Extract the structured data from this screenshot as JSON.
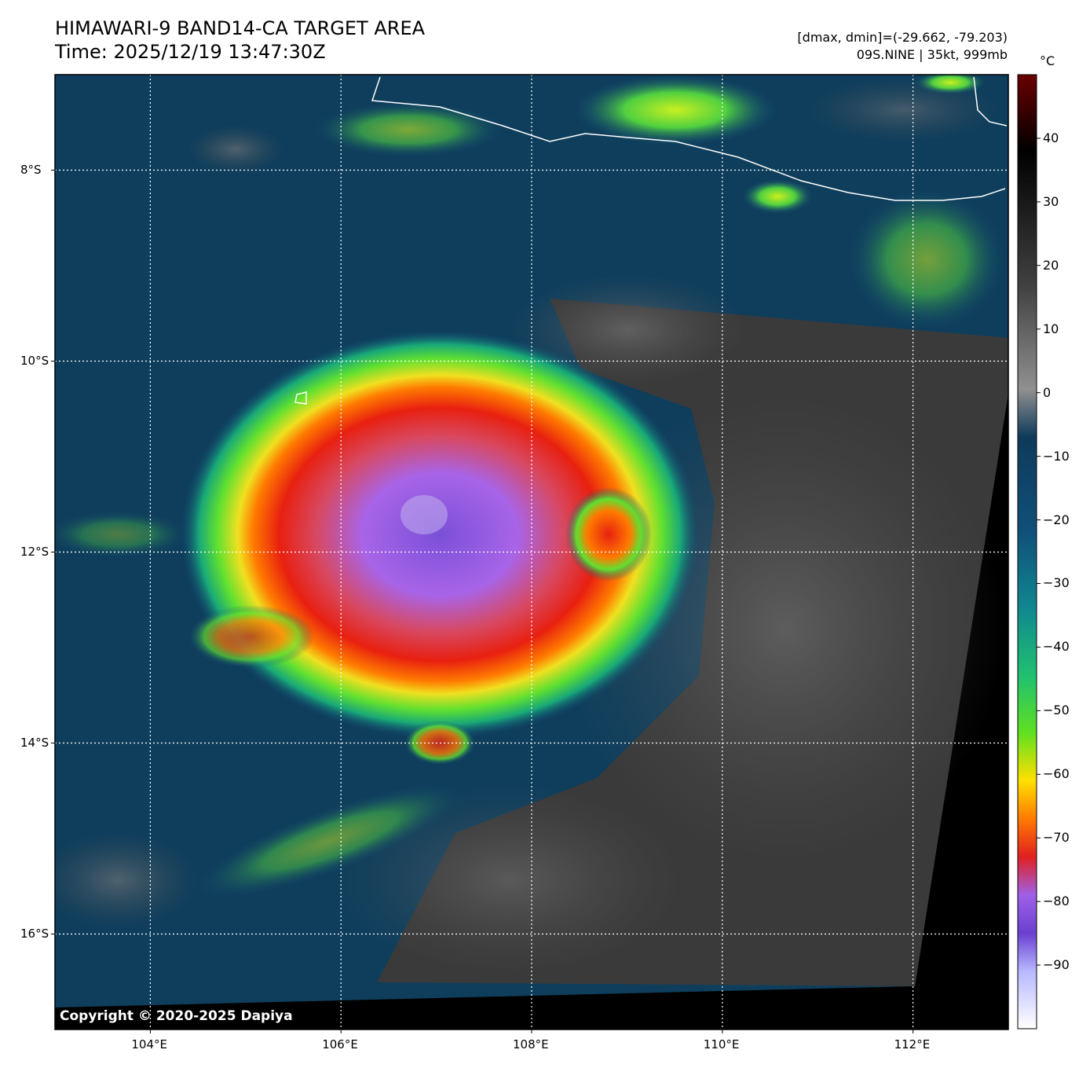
{
  "header": {
    "title_line1": "HIMAWARI-9 BAND14-CA TARGET AREA",
    "title_line2": "Time: 2025/12/19 13:47:30Z",
    "stats_line": "[dmax, dmin]=(-29.662, -79.203)",
    "storm_line": "09S.NINE | 35kt, 999mb"
  },
  "map": {
    "lon_range": [
      103,
      113
    ],
    "lat_range": [
      -17,
      -7
    ],
    "lon_ticks": [
      {
        "value": 104,
        "label": "104°E"
      },
      {
        "value": 106,
        "label": "106°E"
      },
      {
        "value": 108,
        "label": "108°E"
      },
      {
        "value": 110,
        "label": "110°E"
      },
      {
        "value": 112,
        "label": "112°E"
      }
    ],
    "lat_ticks": [
      {
        "value": -8,
        "label": "8°S"
      },
      {
        "value": -10,
        "label": "10°S"
      },
      {
        "value": -12,
        "label": "12°S"
      },
      {
        "value": -14,
        "label": "14°S"
      },
      {
        "value": -16,
        "label": "16°S"
      }
    ],
    "gridlines": true,
    "copyright": "Copyright © 2020-2025 Dapiya"
  },
  "colorbar": {
    "unit": "°C",
    "range": [
      -100,
      50
    ],
    "ticks": [
      {
        "value": 40,
        "label": "40"
      },
      {
        "value": 30,
        "label": "30"
      },
      {
        "value": 20,
        "label": "20"
      },
      {
        "value": 10,
        "label": "10"
      },
      {
        "value": 0,
        "label": "0"
      },
      {
        "value": -10,
        "label": "−10"
      },
      {
        "value": -20,
        "label": "−20"
      },
      {
        "value": -30,
        "label": "−30"
      },
      {
        "value": -40,
        "label": "−40"
      },
      {
        "value": -50,
        "label": "−50"
      },
      {
        "value": -60,
        "label": "−60"
      },
      {
        "value": -70,
        "label": "−70"
      },
      {
        "value": -80,
        "label": "−80"
      },
      {
        "value": -90,
        "label": "−90"
      }
    ]
  }
}
